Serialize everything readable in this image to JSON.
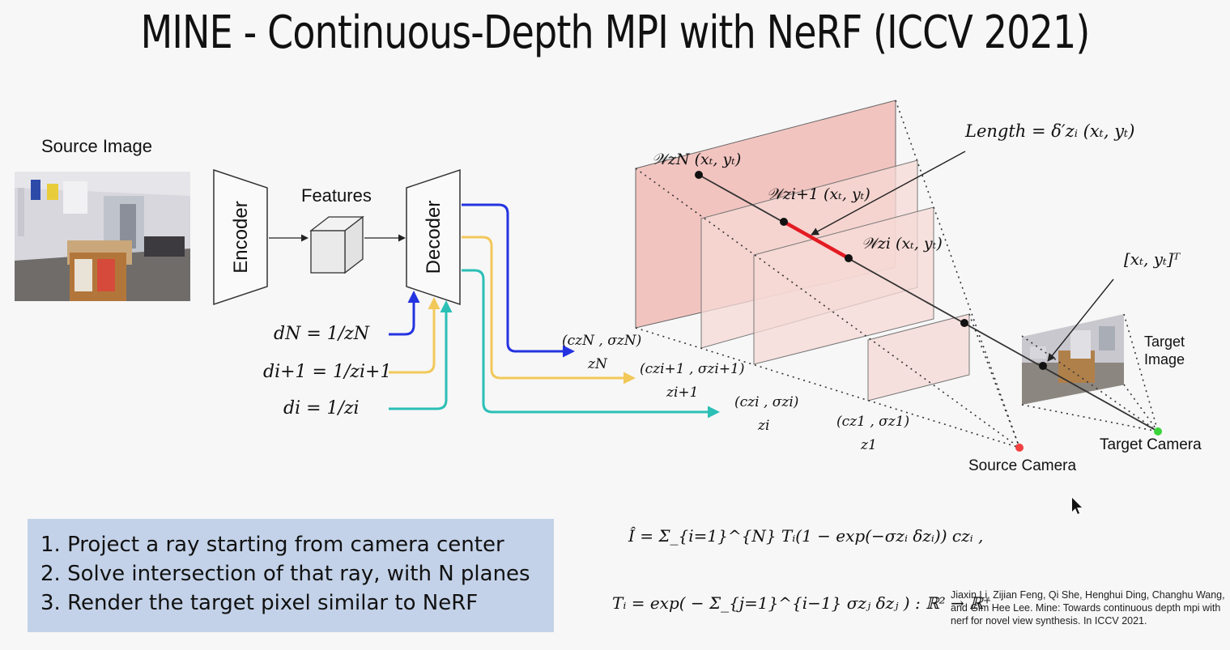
{
  "title": "MINE - Continuous-Depth MPI with NeRF (ICCV 2021)",
  "labels": {
    "source_image": "Source Image",
    "encoder": "Encoder",
    "features": "Features",
    "decoder": "Decoder",
    "target_image": "Target Image",
    "target_camera": "Target Camera",
    "source_camera": "Source Camera",
    "length_eq": "Length = δ′zᵢ (xₜ, yₜ)",
    "w_zN": "𝒲zN (xₜ, yₜ)",
    "w_zi1": "𝒲zi+1 (xₜ, yₜ)",
    "w_zi": "𝒲zi (xₜ, yₜ)",
    "xt_yt": "[xₜ, yₜ]ᵀ",
    "dN": "dN = 1/zN",
    "di1": "di+1 = 1/zi+1",
    "di": "di = 1/zi",
    "out_N": "(czN , σzN)",
    "out_N_z": "zN",
    "out_i1": "(czi+1 , σzi+1)",
    "out_i1_z": "zi+1",
    "out_i": "(czi , σzi)",
    "out_i_z": "zi",
    "out_1": "(cz1 , σz1)",
    "out_1_z": "z1"
  },
  "steps": [
    "1. Project a ray starting from camera center",
    "2. Solve intersection of that ray, with N planes",
    "3. Render the target pixel similar to NeRF"
  ],
  "equations": {
    "render": "Î = Σ_{i=1}^{N} Tᵢ(1 − exp(−σzᵢ δzᵢ)) czᵢ ,",
    "transmittance": "Tᵢ = exp( − Σ_{j=1}^{i−1} σzⱼ δzⱼ ) : ℝ² → ℝ⁺"
  },
  "citation": "Jiaxin Li, Zijian Feng, Qi She, Henghui Ding, Changhu Wang, and Gim Hee Lee. Mine: Towards continuous depth mpi with nerf for novel view synthesis. In ICCV 2021.",
  "colors": {
    "blue_arrow": "#2433e0",
    "yellow_arrow": "#f2c85a",
    "teal_arrow": "#2bbfb6",
    "plane_fill": "#f2c4c0",
    "red_segment": "#e31b23",
    "source_camera": "#f24040",
    "target_camera": "#3ad43a",
    "steps_box": "#c3d2e8"
  }
}
